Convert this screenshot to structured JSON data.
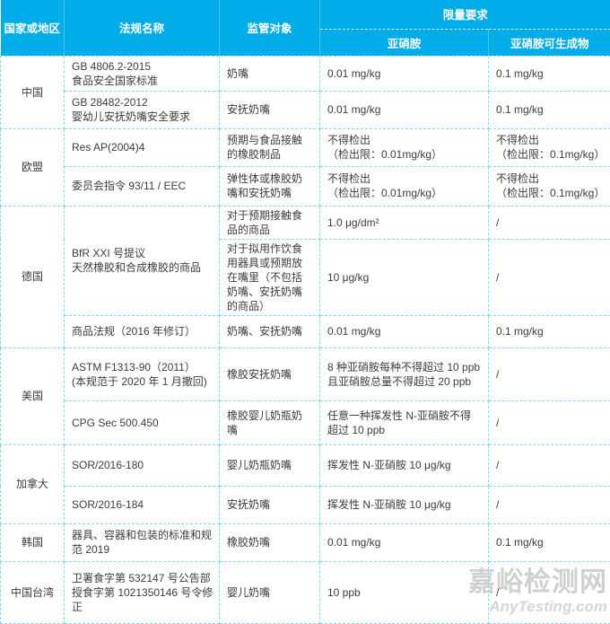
{
  "table": {
    "header": {
      "col1": "国家或地区",
      "col2": "法规名称",
      "col3": "监管对象",
      "limit_group": "限量要求",
      "sub1": "亚硝胺",
      "sub2": "亚硝胺可生成物"
    },
    "colors": {
      "header_bg": "#00ade8",
      "header_text": "#ffffff",
      "border": "#85d7f4",
      "body_text": "#3d3d3d"
    },
    "rows": [
      {
        "cells": [
          {
            "t": "中国",
            "rs": 2
          },
          {
            "t": "GB 4806.2-2015\n食品安全国家标准"
          },
          {
            "t": "奶嘴"
          },
          {
            "t": "0.01 mg/kg"
          },
          {
            "t": "0.1 mg/kg"
          }
        ]
      },
      {
        "cells": [
          {
            "t": "GB 28482-2012\n婴幼儿安抚奶嘴安全要求"
          },
          {
            "t": "安抚奶嘴"
          },
          {
            "t": "0.01 mg/kg"
          },
          {
            "t": "0.1 mg/kg"
          }
        ]
      },
      {
        "cells": [
          {
            "t": "欧盟",
            "rs": 2
          },
          {
            "t": "Res AP(2004)4"
          },
          {
            "t": "预期与食品接触\n的橡胶制品"
          },
          {
            "t": "不得检出\n（检出限：0.01mg/kg）"
          },
          {
            "t": "不得检出\n（检出限：0.1mg/kg）"
          }
        ]
      },
      {
        "cells": [
          {
            "t": "委员会指令 93/11 / EEC"
          },
          {
            "t": "弹性体或橡胶奶\n嘴和安抚奶嘴"
          },
          {
            "t": "不得检出\n（检出限：0.01mg/kg）"
          },
          {
            "t": "不得检出\n（检出限：0.1mg/kg）"
          }
        ]
      },
      {
        "cells": [
          {
            "t": "德国",
            "rs": 3
          },
          {
            "t": "BfR XXI 号提议\n天然橡胶和合成橡胶的商品",
            "rs": 2
          },
          {
            "t": "对于预期接触食\n品的商品"
          },
          {
            "t": "1.0 μg/dm²"
          },
          {
            "t": "/"
          }
        ]
      },
      {
        "cells": [
          {
            "t": "对于拟用作饮食\n用器具或预期放\n在嘴里（不包括\n奶嘴、安抚奶嘴\n的商品）"
          },
          {
            "t": "10 μg/kg"
          },
          {
            "t": "/"
          }
        ]
      },
      {
        "cells": [
          {
            "t": "商品法规（2016 年修订）"
          },
          {
            "t": "奶嘴、安抚奶嘴"
          },
          {
            "t": "0.01 mg/kg"
          },
          {
            "t": "0.1 mg/kg"
          }
        ]
      },
      {
        "cells": [
          {
            "t": "美国",
            "rs": 2
          },
          {
            "t": "ASTM F1313-90（2011）\n(本规范于 2020 年 1 月撤回)"
          },
          {
            "t": "橡胶安抚奶嘴"
          },
          {
            "t": "8 种亚硝胺每种不得超过 10 ppb\n且亚硝胺总量不得超过 20 ppb"
          },
          {
            "t": "/"
          }
        ]
      },
      {
        "cells": [
          {
            "t": "CPG Sec 500.450"
          },
          {
            "t": "橡胶婴儿奶瓶奶\n嘴"
          },
          {
            "t": "任意一种挥发性 N-亚硝胺不得\n超过 10 ppb"
          },
          {
            "t": "/"
          }
        ]
      },
      {
        "cells": [
          {
            "t": "加拿大",
            "rs": 2
          },
          {
            "t": "SOR/2016-180"
          },
          {
            "t": "婴儿奶瓶奶嘴"
          },
          {
            "t": "挥发性 N-亚硝胺 10 μg/kg"
          },
          {
            "t": "/"
          }
        ]
      },
      {
        "cells": [
          {
            "t": "SOR/2016-184"
          },
          {
            "t": "安抚奶嘴"
          },
          {
            "t": "挥发性 N-亚硝胺 10 μg/kg"
          },
          {
            "t": "/"
          }
        ]
      },
      {
        "cells": [
          {
            "t": "韩国"
          },
          {
            "t": "器具、容器和包装的标准和规\n范 2019"
          },
          {
            "t": "橡胶奶嘴"
          },
          {
            "t": "0.01 mg/kg"
          },
          {
            "t": "0.1 mg/kg"
          }
        ]
      },
      {
        "cells": [
          {
            "t": "中国台湾"
          },
          {
            "t": "卫署食字第 532147 号公告部\n授食字第 1021350146 号令修\n正"
          },
          {
            "t": "婴儿奶嘴"
          },
          {
            "t": "10 ppb"
          },
          {
            "t": "/"
          }
        ]
      }
    ]
  },
  "watermark": {
    "line1": "嘉峪检测网",
    "line2": "AnyTesting.com",
    "color": "#d2cfd1"
  }
}
